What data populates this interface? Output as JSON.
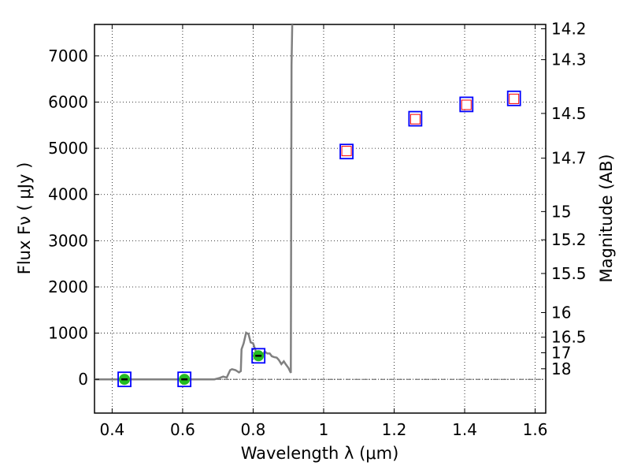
{
  "chart_data": {
    "type": "scatter",
    "xlabel": "Wavelength  λ (μm)",
    "ylabel": "Flux  Fν  ( μJy )",
    "ylabel_right": "Magnitude (AB)",
    "xlim": [
      0.35,
      1.63
    ],
    "ylim": [
      -730,
      7680
    ],
    "grid": true,
    "legend": "none",
    "x_ticks": [
      {
        "v": 0.4,
        "label": "0.4"
      },
      {
        "v": 0.6,
        "label": "0.6"
      },
      {
        "v": 0.8,
        "label": "0.8"
      },
      {
        "v": 1.0,
        "label": "1"
      },
      {
        "v": 1.2,
        "label": "1.2"
      },
      {
        "v": 1.4,
        "label": "1.4"
      },
      {
        "v": 1.6,
        "label": "1.6"
      }
    ],
    "y_ticks": [
      {
        "v": 0,
        "label": "0"
      },
      {
        "v": 1000,
        "label": "1000"
      },
      {
        "v": 2000,
        "label": "2000"
      },
      {
        "v": 3000,
        "label": "3000"
      },
      {
        "v": 4000,
        "label": "4000"
      },
      {
        "v": 5000,
        "label": "5000"
      },
      {
        "v": 6000,
        "label": "6000"
      },
      {
        "v": 7000,
        "label": "7000"
      }
    ],
    "mag_ticks": [
      "14.2",
      "14.3",
      "14.5",
      "14.7",
      "15",
      "15.2",
      "15.5",
      "16",
      "16.5",
      "17",
      "18"
    ],
    "model_spectrum": {
      "color": "#808080",
      "points": [
        [
          0.35,
          0
        ],
        [
          0.5,
          0
        ],
        [
          0.69,
          0
        ],
        [
          0.705,
          30
        ],
        [
          0.715,
          60
        ],
        [
          0.725,
          40
        ],
        [
          0.735,
          200
        ],
        [
          0.74,
          220
        ],
        [
          0.75,
          200
        ],
        [
          0.76,
          150
        ],
        [
          0.765,
          180
        ],
        [
          0.767,
          650
        ],
        [
          0.773,
          780
        ],
        [
          0.78,
          1010
        ],
        [
          0.787,
          980
        ],
        [
          0.793,
          800
        ],
        [
          0.8,
          780
        ],
        [
          0.807,
          620
        ],
        [
          0.813,
          560
        ],
        [
          0.82,
          580
        ],
        [
          0.827,
          540
        ],
        [
          0.833,
          600
        ],
        [
          0.84,
          560
        ],
        [
          0.847,
          560
        ],
        [
          0.853,
          500
        ],
        [
          0.86,
          480
        ],
        [
          0.867,
          470
        ],
        [
          0.873,
          420
        ],
        [
          0.88,
          330
        ],
        [
          0.887,
          390
        ],
        [
          0.893,
          320
        ],
        [
          0.9,
          250
        ],
        [
          0.907,
          140
        ],
        [
          0.909,
          6800
        ],
        [
          0.911,
          7680
        ]
      ]
    },
    "baseline": {
      "y": 0,
      "color": "#404040"
    },
    "observed_squares": {
      "color": "#0000ff",
      "points": [
        [
          0.435,
          0
        ],
        [
          0.605,
          0
        ],
        [
          0.815,
          510
        ],
        [
          1.065,
          4930
        ],
        [
          1.26,
          5640
        ],
        [
          1.405,
          5950
        ],
        [
          1.54,
          6080
        ]
      ]
    },
    "model_squares": {
      "color": "#ff0000",
      "points": [
        [
          1.065,
          4940
        ],
        [
          1.26,
          5630
        ],
        [
          1.405,
          5940
        ],
        [
          1.54,
          6070
        ]
      ]
    },
    "detections": {
      "color": "#22bb22",
      "points": [
        [
          0.435,
          0
        ],
        [
          0.605,
          0
        ],
        [
          0.815,
          510
        ]
      ]
    }
  }
}
